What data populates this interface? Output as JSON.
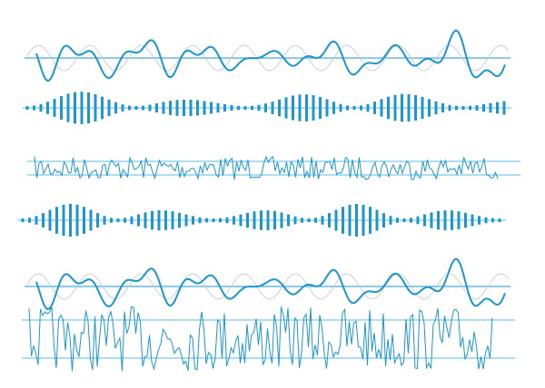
{
  "colors": {
    "primary": "#1c96cc",
    "light": "#5cb8e0",
    "ghost": "#b9c7cf",
    "background": "#ffffff"
  }
}
